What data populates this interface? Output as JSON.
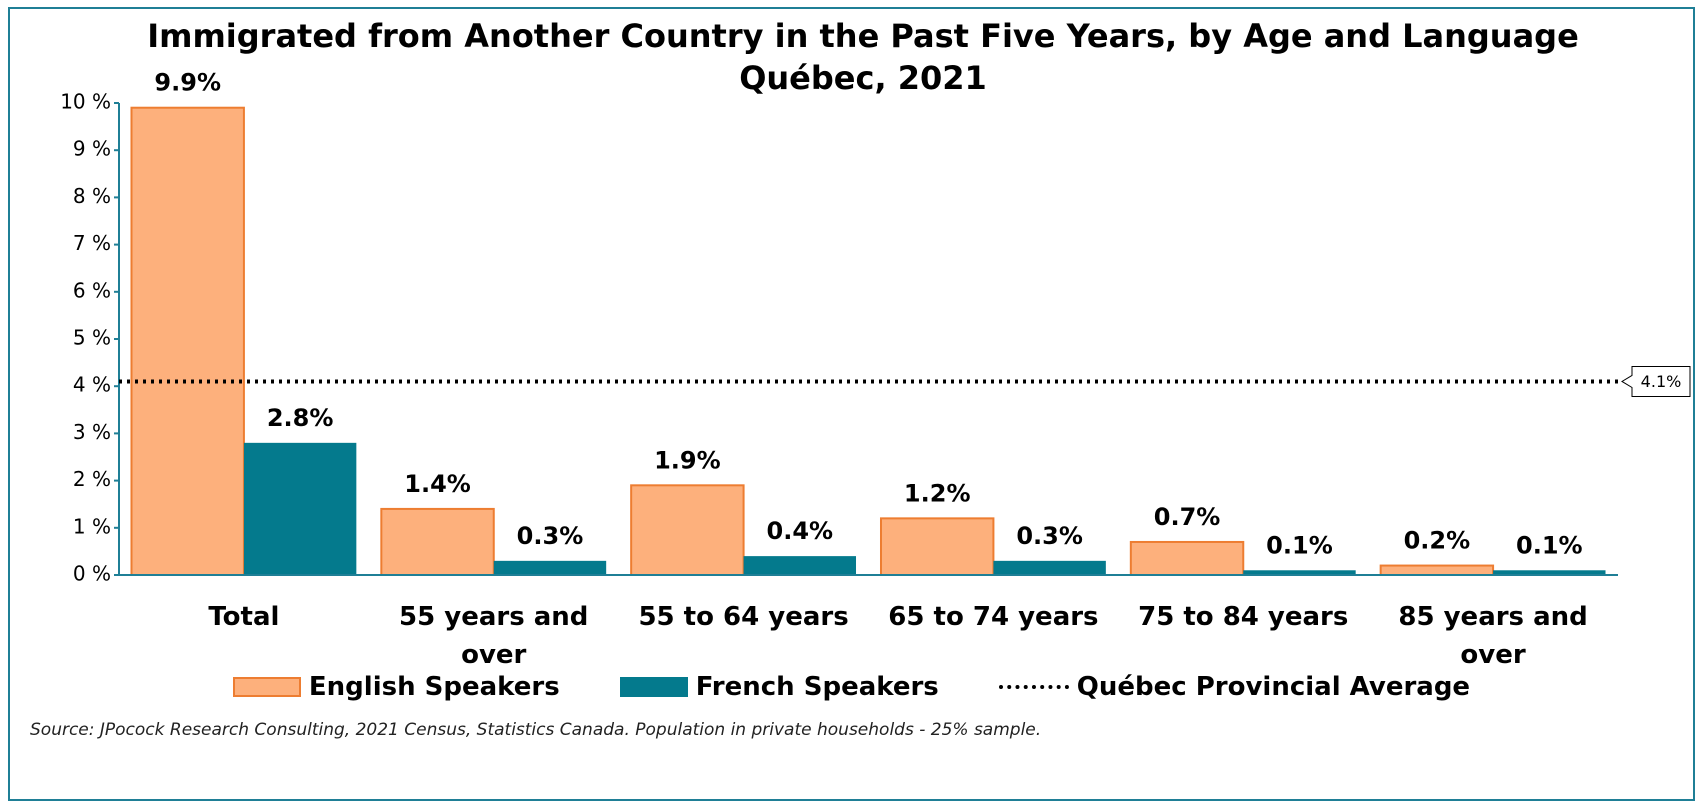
{
  "chart_data": {
    "type": "bar",
    "title": "Immigrated from Another Country in the Past Five Years, by Age and Language",
    "subtitle": "Québec, 2021",
    "categories": [
      "Total",
      "55 years and over",
      "55 to 64 years",
      "65 to 74 years",
      "75 to 84 years",
      "85 years and over"
    ],
    "series": [
      {
        "name": "English Speakers",
        "color": "#fdb07c",
        "edge": "#ed7d31",
        "values": [
          9.9,
          1.4,
          1.9,
          1.2,
          0.7,
          0.2
        ],
        "value_labels": [
          "9.9%",
          "1.4%",
          "1.9%",
          "1.2%",
          "0.7%",
          "0.2%"
        ]
      },
      {
        "name": "French Speakers",
        "color": "#047a8d",
        "values": [
          2.8,
          0.3,
          0.4,
          0.3,
          0.1,
          0.1
        ],
        "value_labels": [
          "2.8%",
          "0.3%",
          "0.4%",
          "0.3%",
          "0.1%",
          "0.1%"
        ]
      }
    ],
    "reference_line": {
      "name": "Québec Provincial Average",
      "value": 4.1,
      "label": "4.1%"
    },
    "ylim": [
      0,
      10
    ],
    "yticks": [
      {
        "value": 0,
        "label": "0 %"
      },
      {
        "value": 1,
        "label": "1 %"
      },
      {
        "value": 2,
        "label": "2 %"
      },
      {
        "value": 3,
        "label": "3 %"
      },
      {
        "value": 4,
        "label": "4 %"
      },
      {
        "value": 5,
        "label": "5 %"
      },
      {
        "value": 6,
        "label": "6 %"
      },
      {
        "value": 7,
        "label": "7 %"
      },
      {
        "value": 8,
        "label": "8 %"
      },
      {
        "value": 9,
        "label": "9 %"
      },
      {
        "value": 10,
        "label": "10 %"
      }
    ],
    "grid": false,
    "source": "Source: JPocock Research Consulting, 2021 Census, Statistics Canada. Population in private households - 25% sample."
  }
}
